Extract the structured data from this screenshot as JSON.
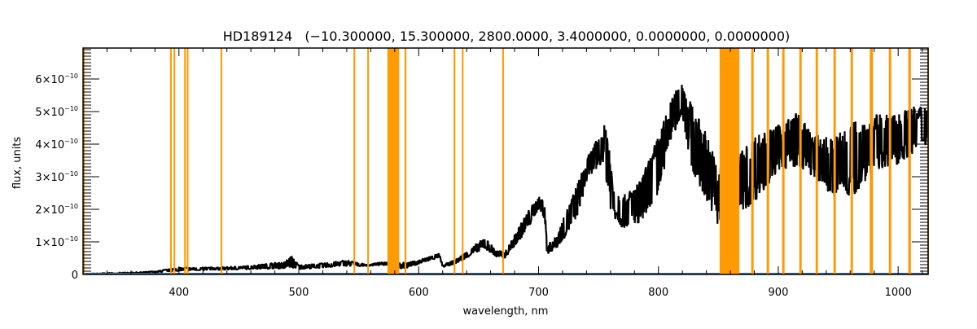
{
  "chart_data": {
    "type": "line",
    "title": "HD189124   (−10.300000, 15.300000, 2800.0000, 3.4000000, 0.0000000, 0.0000000)",
    "xlabel": "wavelength, nm",
    "ylabel": "flux, units",
    "xlim": [
      320,
      1025
    ],
    "ylim": [
      0,
      6.95e-10
    ],
    "x_ticks": [
      400,
      500,
      600,
      700,
      800,
      900,
      1000
    ],
    "x_tick_labels": [
      "400",
      "500",
      "600",
      "700",
      "800",
      "900",
      "1000"
    ],
    "y_ticks": [
      0,
      1e-10,
      2e-10,
      3e-10,
      4e-10,
      5e-10,
      6e-10
    ],
    "y_tick_labels": [
      {
        "mantissa": "0",
        "exp": ""
      },
      {
        "mantissa": "1×10",
        "exp": "−10"
      },
      {
        "mantissa": "2×10",
        "exp": "−10"
      },
      {
        "mantissa": "3×10",
        "exp": "−10"
      },
      {
        "mantissa": "4×10",
        "exp": "−10"
      },
      {
        "mantissa": "5×10",
        "exp": "−10"
      },
      {
        "mantissa": "6×10",
        "exp": "−10"
      }
    ],
    "grid": false,
    "flux_unit_scale": 1e-10,
    "spectrum_envelope": {
      "note_units": "nm, flux low/high in units of 1e-10",
      "points": [
        [
          325,
          0.0,
          0.03
        ],
        [
          360,
          0.02,
          0.07
        ],
        [
          380,
          0.05,
          0.1
        ],
        [
          400,
          0.1,
          0.22
        ],
        [
          420,
          0.12,
          0.22
        ],
        [
          450,
          0.15,
          0.25
        ],
        [
          488,
          0.18,
          0.4
        ],
        [
          494,
          0.2,
          0.6
        ],
        [
          500,
          0.15,
          0.3
        ],
        [
          520,
          0.2,
          0.35
        ],
        [
          540,
          0.25,
          0.45
        ],
        [
          556,
          0.25,
          0.32
        ],
        [
          570,
          0.28,
          0.38
        ],
        [
          578,
          0.3,
          0.42
        ],
        [
          585,
          0.15,
          0.35
        ],
        [
          600,
          0.3,
          0.45
        ],
        [
          612,
          0.45,
          0.6
        ],
        [
          617,
          0.5,
          0.65
        ],
        [
          620,
          0.22,
          0.3
        ],
        [
          630,
          0.3,
          0.45
        ],
        [
          645,
          0.6,
          0.85
        ],
        [
          655,
          0.8,
          1.15
        ],
        [
          665,
          0.5,
          0.75
        ],
        [
          672,
          0.5,
          0.7
        ],
        [
          690,
          1.3,
          1.9
        ],
        [
          700,
          2.0,
          2.4
        ],
        [
          705,
          1.7,
          2.3
        ],
        [
          707,
          0.6,
          0.9
        ],
        [
          715,
          0.8,
          1.2
        ],
        [
          730,
          1.5,
          2.6
        ],
        [
          742,
          3.0,
          3.7
        ],
        [
          755,
          3.5,
          4.6
        ],
        [
          758,
          2.2,
          4.7
        ],
        [
          762,
          1.8,
          2.8
        ],
        [
          770,
          1.4,
          2.4
        ],
        [
          785,
          1.6,
          2.9
        ],
        [
          800,
          2.5,
          4.3
        ],
        [
          812,
          4.3,
          5.5
        ],
        [
          820,
          4.8,
          6.0
        ],
        [
          828,
          3.2,
          5.2
        ],
        [
          840,
          2.3,
          4.4
        ],
        [
          850,
          1.5,
          3.3
        ],
        [
          868,
          1.9,
          3.8
        ],
        [
          880,
          2.2,
          4.3
        ],
        [
          900,
          3.2,
          4.6
        ],
        [
          915,
          3.3,
          5.0
        ],
        [
          930,
          3.0,
          4.3
        ],
        [
          945,
          2.4,
          4.2
        ],
        [
          960,
          2.3,
          4.8
        ],
        [
          980,
          3.2,
          4.9
        ],
        [
          1000,
          3.4,
          5.0
        ],
        [
          1025,
          4.0,
          5.3
        ]
      ]
    },
    "baseline": {
      "name": "zero line",
      "value": 0,
      "color": "#1874e8"
    },
    "masked_regions_nm": [
      [
        392.6,
        394.0
      ],
      [
        395.5,
        396.8
      ],
      [
        404.4,
        405.6
      ],
      [
        406.6,
        407.8
      ],
      [
        434.7,
        436.1
      ],
      [
        545.6,
        546.9
      ],
      [
        557.1,
        558.4
      ],
      [
        573.9,
        583.7
      ],
      [
        588.2,
        589.7
      ],
      [
        629.1,
        630.6
      ],
      [
        636.0,
        637.4
      ],
      [
        669.7,
        671.1
      ],
      [
        851.0,
        867.5
      ],
      [
        877.4,
        879.4
      ],
      [
        890.3,
        892.3
      ],
      [
        903.2,
        905.2
      ],
      [
        917.5,
        919.5
      ],
      [
        931.1,
        933.1
      ],
      [
        946.0,
        948.0
      ],
      [
        960.3,
        962.3
      ],
      [
        976.3,
        978.9
      ],
      [
        992.2,
        994.2
      ],
      [
        1008.4,
        1010.6
      ],
      [
        1024.3,
        1025
      ]
    ],
    "colors": {
      "spectrum": "#000000",
      "mask": "#ff9a00",
      "baseline": "#1874e8"
    }
  }
}
